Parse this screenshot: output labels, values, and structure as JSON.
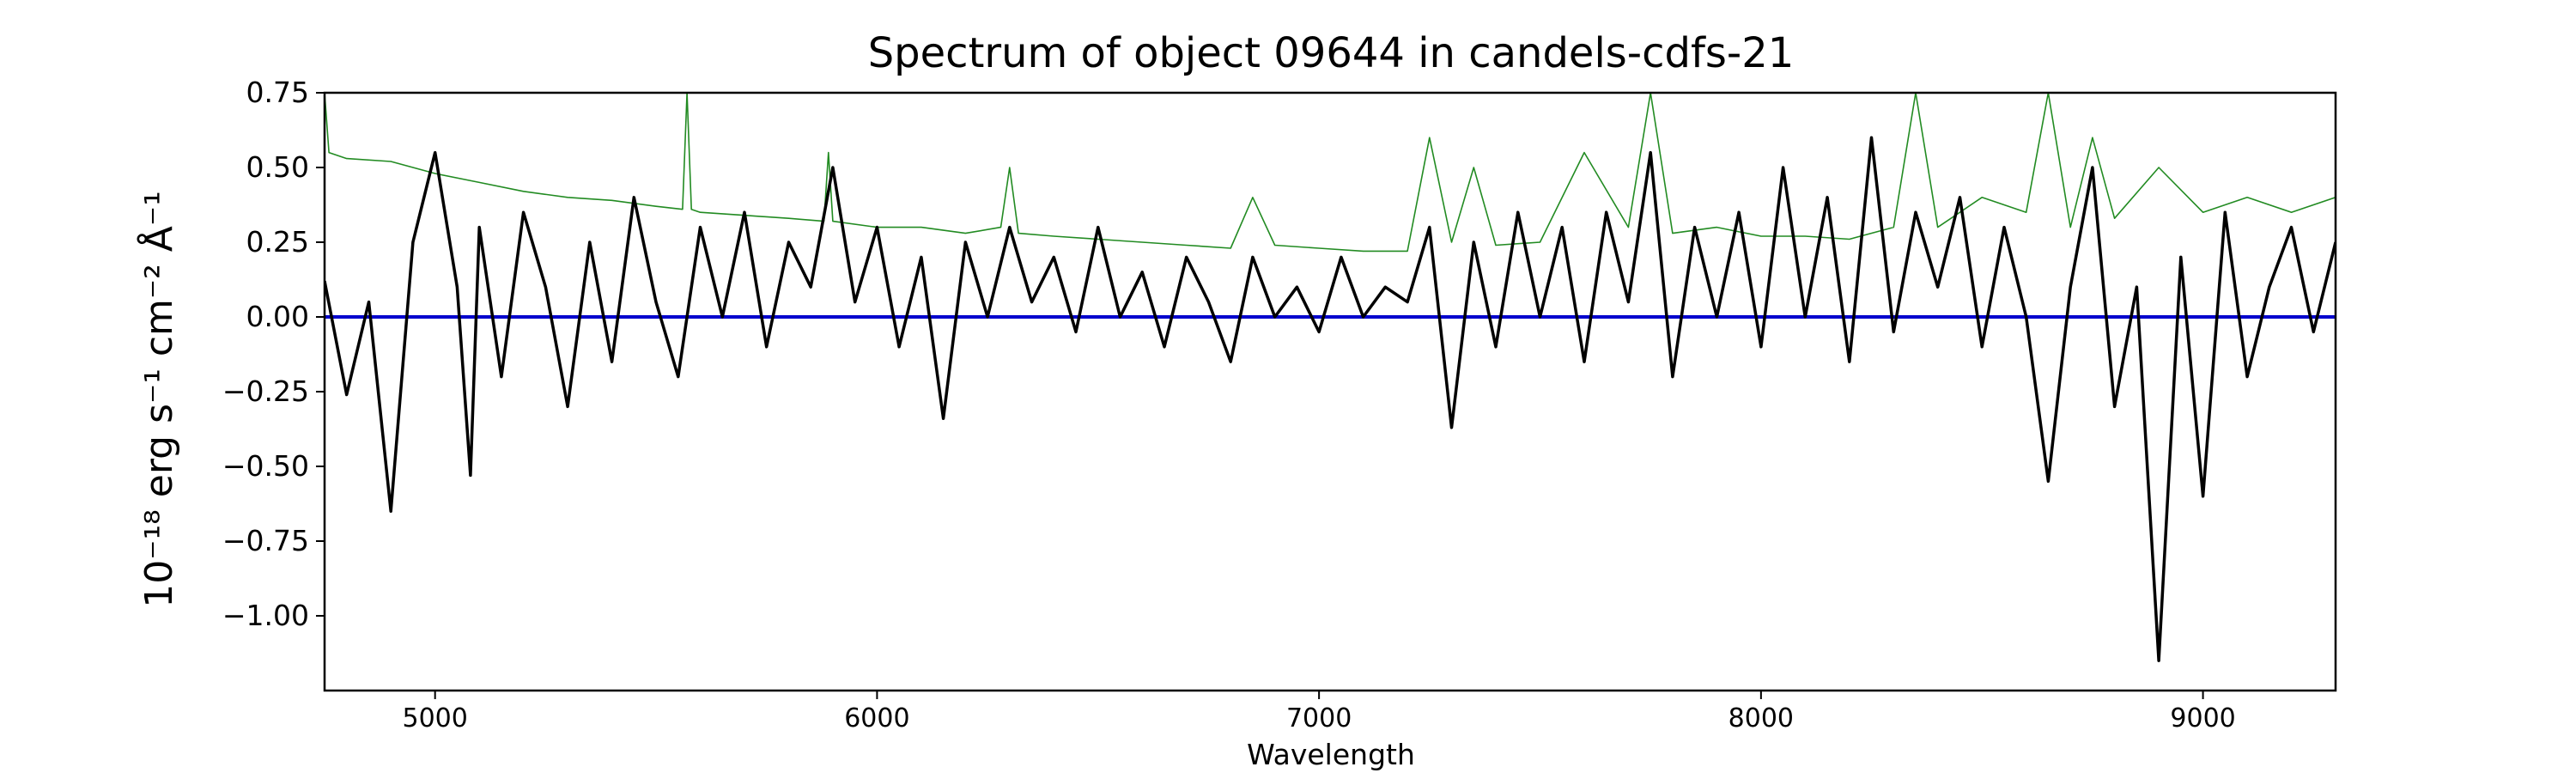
{
  "chart_data": {
    "type": "line",
    "title": "Spectrum of object 09644 in candels-cdfs-21",
    "xlabel": "Wavelength",
    "ylabel": "10⁻¹⁸ erg s⁻¹ cm⁻² Å⁻¹",
    "xlim": [
      4750,
      9300
    ],
    "ylim": [
      -1.25,
      0.75
    ],
    "xticks": [
      5000,
      6000,
      7000,
      8000,
      9000
    ],
    "yticks": [
      -1.0,
      -0.75,
      -0.5,
      -0.25,
      0.0,
      0.25,
      0.5,
      0.75
    ],
    "yticklabels": [
      "−1.00",
      "−0.75",
      "−0.50",
      "−0.25",
      "0.00",
      "0.25",
      "0.50",
      "0.75"
    ],
    "grid": false,
    "series": [
      {
        "role": "flux",
        "color": "#000000",
        "x": [
          4750,
          4800,
          4850,
          4900,
          4950,
          5000,
          5050,
          5080,
          5100,
          5150,
          5200,
          5250,
          5300,
          5350,
          5400,
          5450,
          5500,
          5550,
          5600,
          5650,
          5700,
          5750,
          5800,
          5850,
          5900,
          5950,
          6000,
          6050,
          6100,
          6150,
          6200,
          6250,
          6300,
          6350,
          6400,
          6450,
          6500,
          6550,
          6600,
          6650,
          6700,
          6750,
          6800,
          6850,
          6900,
          6950,
          7000,
          7050,
          7100,
          7150,
          7200,
          7250,
          7300,
          7350,
          7400,
          7450,
          7500,
          7550,
          7600,
          7650,
          7700,
          7750,
          7800,
          7850,
          7900,
          7950,
          8000,
          8050,
          8100,
          8150,
          8200,
          8250,
          8300,
          8350,
          8400,
          8450,
          8500,
          8550,
          8600,
          8650,
          8700,
          8750,
          8800,
          8850,
          8900,
          8950,
          9000,
          9050,
          9100,
          9150,
          9200,
          9250,
          9300
        ],
        "y": [
          0.12,
          -0.26,
          0.05,
          -0.65,
          0.25,
          0.55,
          0.1,
          -0.53,
          0.3,
          -0.2,
          0.35,
          0.1,
          -0.3,
          0.25,
          -0.15,
          0.4,
          0.05,
          -0.2,
          0.3,
          0.0,
          0.35,
          -0.1,
          0.25,
          0.1,
          0.5,
          0.05,
          0.3,
          -0.1,
          0.2,
          -0.34,
          0.25,
          0.0,
          0.3,
          0.05,
          0.2,
          -0.05,
          0.3,
          0.0,
          0.15,
          -0.1,
          0.2,
          0.05,
          -0.15,
          0.2,
          0.0,
          0.1,
          -0.05,
          0.2,
          0.0,
          0.1,
          0.05,
          0.3,
          -0.37,
          0.25,
          -0.1,
          0.35,
          0.0,
          0.3,
          -0.15,
          0.35,
          0.05,
          0.55,
          -0.2,
          0.3,
          0.0,
          0.35,
          -0.1,
          0.5,
          0.0,
          0.4,
          -0.15,
          0.6,
          -0.05,
          0.35,
          0.1,
          0.4,
          -0.1,
          0.3,
          0.0,
          -0.55,
          0.1,
          0.5,
          -0.3,
          0.1,
          -1.15,
          0.2,
          -0.6,
          0.35,
          -0.2,
          0.1,
          0.3,
          -0.05,
          0.25
        ]
      },
      {
        "role": "error",
        "color": "#228b22",
        "x": [
          4750,
          4760,
          4800,
          4900,
          5000,
          5100,
          5200,
          5300,
          5400,
          5500,
          5560,
          5570,
          5580,
          5600,
          5700,
          5800,
          5880,
          5890,
          5900,
          6000,
          6100,
          6200,
          6280,
          6300,
          6320,
          6400,
          6500,
          6600,
          6700,
          6800,
          6850,
          6900,
          7000,
          7100,
          7200,
          7250,
          7300,
          7350,
          7400,
          7500,
          7600,
          7700,
          7750,
          7800,
          7900,
          8000,
          8100,
          8200,
          8300,
          8350,
          8400,
          8500,
          8600,
          8650,
          8700,
          8750,
          8800,
          8900,
          9000,
          9100,
          9200,
          9300
        ],
        "y": [
          0.75,
          0.55,
          0.53,
          0.52,
          0.48,
          0.45,
          0.42,
          0.4,
          0.39,
          0.37,
          0.36,
          0.75,
          0.36,
          0.35,
          0.34,
          0.33,
          0.32,
          0.55,
          0.32,
          0.3,
          0.3,
          0.28,
          0.3,
          0.5,
          0.28,
          0.27,
          0.26,
          0.25,
          0.24,
          0.23,
          0.4,
          0.24,
          0.23,
          0.22,
          0.22,
          0.6,
          0.25,
          0.5,
          0.24,
          0.25,
          0.55,
          0.3,
          0.75,
          0.28,
          0.3,
          0.27,
          0.27,
          0.26,
          0.3,
          0.75,
          0.3,
          0.4,
          0.35,
          0.75,
          0.3,
          0.6,
          0.33,
          0.5,
          0.35,
          0.4,
          0.35,
          0.4
        ]
      },
      {
        "role": "model",
        "color": "#0000cd",
        "x": [
          4750,
          9300
        ],
        "y": [
          0.0,
          0.0
        ]
      }
    ]
  }
}
